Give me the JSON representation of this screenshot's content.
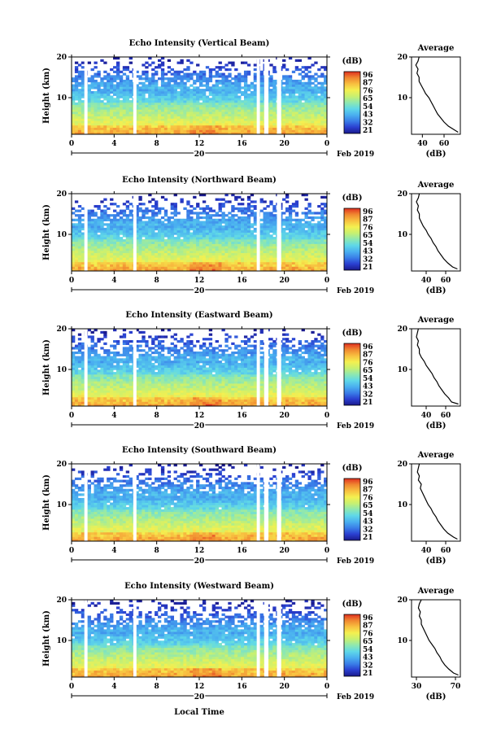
{
  "figure": {
    "xlabel": "Local Time",
    "colorbar_unit": "(dB)",
    "colorbar_ticks": [
      "96",
      "87",
      "76",
      "65",
      "54",
      "43",
      "32",
      "21"
    ],
    "date_label": "Feb 2019",
    "day_label": "20",
    "profile_title": "Average",
    "profile_xlabel": "(dB)",
    "ylabel": "Height (km)",
    "xticks": [
      "0",
      "4",
      "8",
      "12",
      "16",
      "20",
      "0"
    ],
    "yticks": [
      "10",
      "20"
    ],
    "colormap": [
      "#1a1a8c",
      "#2a3fd0",
      "#3a7ee8",
      "#4ab0f0",
      "#5fd8e8",
      "#8ee8b0",
      "#c8f070",
      "#f4f050",
      "#f8c040",
      "#f08830",
      "#e03020"
    ]
  },
  "chart_data": [
    {
      "type": "heatmap",
      "title": "Echo Intensity (Vertical Beam)",
      "xlabel": "Local Time",
      "ylabel": "Height (km)",
      "xlim": [
        0,
        24
      ],
      "ylim": [
        1,
        20
      ],
      "color_range_db": [
        21,
        96
      ],
      "data_gaps_hours": [
        [
          1.2,
          1.5
        ],
        [
          5.8,
          6.1
        ],
        [
          17.4,
          17.7
        ],
        [
          18.1,
          18.5
        ],
        [
          19.3,
          19.7
        ]
      ],
      "profile": {
        "title": "Average",
        "xlabel": "(dB)",
        "xticks": [
          "40",
          "60"
        ],
        "xlim": [
          30,
          75
        ],
        "height_km": [
          1.5,
          2,
          3,
          4,
          5,
          6,
          7,
          8,
          9,
          10,
          11,
          12,
          13,
          14,
          15,
          16,
          17,
          18,
          19,
          20
        ],
        "mean_db": [
          73,
          70,
          64,
          60,
          57,
          54,
          52,
          50,
          48,
          46,
          43,
          41,
          39,
          37,
          37,
          35,
          36,
          34,
          36,
          37
        ]
      }
    },
    {
      "type": "heatmap",
      "title": "Echo Intensity (Northward Beam)",
      "xlabel": "Local Time",
      "ylabel": "Height (km)",
      "xlim": [
        0,
        24
      ],
      "ylim": [
        1,
        20
      ],
      "color_range_db": [
        21,
        96
      ],
      "data_gaps_hours": [
        [
          1.2,
          1.5
        ],
        [
          5.8,
          6.1
        ],
        [
          17.4,
          17.7
        ],
        [
          19.3,
          19.7
        ]
      ],
      "profile": {
        "title": "Average",
        "xlabel": "(dB)",
        "xticks": [
          "40",
          "60"
        ],
        "xlim": [
          25,
          75
        ],
        "height_km": [
          1.5,
          2,
          3,
          4,
          5,
          6,
          7,
          8,
          9,
          10,
          11,
          12,
          13,
          14,
          15,
          16,
          17,
          18,
          19,
          20
        ],
        "mean_db": [
          72,
          67,
          62,
          58,
          55,
          52,
          50,
          47,
          45,
          42,
          40,
          37,
          35,
          33,
          33,
          31,
          32,
          30,
          32,
          33
        ]
      }
    },
    {
      "type": "heatmap",
      "title": "Echo Intensity (Eastward Beam)",
      "xlabel": "Local Time",
      "ylabel": "Height (km)",
      "xlim": [
        0,
        24
      ],
      "ylim": [
        1,
        20
      ],
      "color_range_db": [
        21,
        96
      ],
      "data_gaps_hours": [
        [
          1.2,
          1.5
        ],
        [
          5.8,
          6.1
        ],
        [
          17.4,
          17.7
        ],
        [
          18.1,
          18.5
        ],
        [
          19.3,
          19.7
        ]
      ],
      "profile": {
        "title": "Average",
        "xlabel": "(dB)",
        "xticks": [
          "40",
          "60"
        ],
        "xlim": [
          25,
          75
        ],
        "height_km": [
          1.5,
          2,
          3,
          4,
          5,
          6,
          7,
          8,
          9,
          10,
          11,
          12,
          13,
          14,
          15,
          16,
          17,
          18,
          19,
          20
        ],
        "mean_db": [
          73,
          66,
          63,
          59,
          56,
          53,
          51,
          48,
          46,
          43,
          40,
          38,
          35,
          33,
          33,
          31,
          32,
          30,
          31,
          32
        ]
      }
    },
    {
      "type": "heatmap",
      "title": "Echo Intensity (Southward Beam)",
      "xlabel": "Local Time",
      "ylabel": "Height (km)",
      "xlim": [
        0,
        24
      ],
      "ylim": [
        1,
        20
      ],
      "color_range_db": [
        21,
        96
      ],
      "data_gaps_hours": [
        [
          1.2,
          1.5
        ],
        [
          5.8,
          6.1
        ],
        [
          17.4,
          17.7
        ],
        [
          18.1,
          18.5
        ],
        [
          19.3,
          19.7
        ]
      ],
      "profile": {
        "title": "Average",
        "xlabel": "(dB)",
        "xticks": [
          "40",
          "60"
        ],
        "xlim": [
          25,
          75
        ],
        "height_km": [
          1.5,
          2,
          3,
          4,
          5,
          6,
          7,
          8,
          9,
          10,
          11,
          12,
          13,
          14,
          15,
          16,
          17,
          18,
          19,
          20
        ],
        "mean_db": [
          72,
          68,
          62,
          58,
          55,
          52,
          50,
          47,
          45,
          42,
          40,
          38,
          36,
          34,
          35,
          32,
          33,
          31,
          32,
          33
        ]
      }
    },
    {
      "type": "heatmap",
      "title": "Echo Intensity (Westward Beam)",
      "xlabel": "Local Time",
      "ylabel": "Height (km)",
      "xlim": [
        0,
        24
      ],
      "ylim": [
        1,
        20
      ],
      "color_range_db": [
        21,
        96
      ],
      "data_gaps_hours": [
        [
          1.2,
          1.5
        ],
        [
          5.8,
          6.1
        ],
        [
          17.4,
          17.7
        ],
        [
          18.1,
          18.5
        ],
        [
          19.3,
          19.7
        ]
      ],
      "profile": {
        "title": "Average",
        "xlabel": "(dB)",
        "xticks": [
          "30",
          "70"
        ],
        "xlim": [
          25,
          75
        ],
        "height_km": [
          1.5,
          2,
          3,
          4,
          5,
          6,
          7,
          8,
          9,
          10,
          11,
          12,
          13,
          14,
          15,
          16,
          17,
          18,
          19,
          20
        ],
        "mean_db": [
          73,
          68,
          63,
          59,
          56,
          54,
          51,
          49,
          46,
          43,
          41,
          39,
          37,
          35,
          35,
          33,
          34,
          32,
          33,
          35
        ]
      }
    }
  ]
}
